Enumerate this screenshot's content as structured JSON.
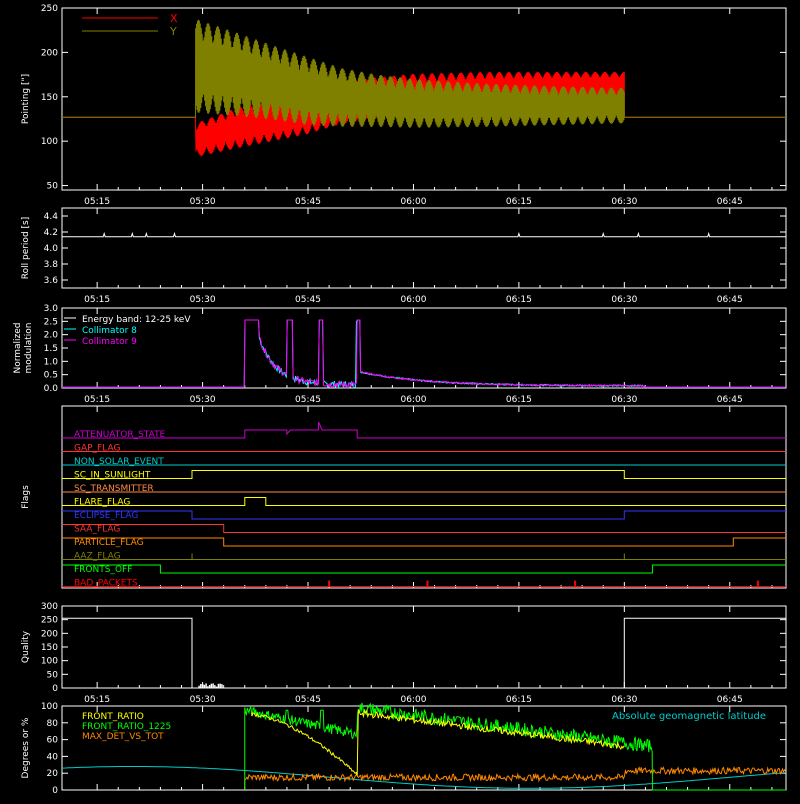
{
  "x_ticks": [
    "05:15",
    "05:30",
    "05:45",
    "06:00",
    "06:15",
    "06:30",
    "06:45"
  ],
  "chart_data": [
    {
      "type": "line",
      "ylabel": "Pointing [\"]",
      "ylim": [
        45,
        250
      ],
      "yticks": [
        "50",
        "100",
        "150",
        "200",
        "250"
      ],
      "x_axis": "time HH:MM",
      "x_range": [
        "05:10",
        "06:53"
      ],
      "legend": [
        "X",
        "Y"
      ],
      "series": [
        {
          "name": "X",
          "color": "#ff0000",
          "before": "127",
          "envelope": [
            {
              "t": "05:29",
              "lo": 82,
              "hi": 120
            },
            {
              "t": "05:35",
              "lo": 92,
              "hi": 138
            },
            {
              "t": "05:40",
              "lo": 100,
              "hi": 146
            },
            {
              "t": "05:45",
              "lo": 108,
              "hi": 155
            },
            {
              "t": "05:50",
              "lo": 120,
              "hi": 168
            },
            {
              "t": "05:55",
              "lo": 126,
              "hi": 172
            },
            {
              "t": "06:00",
              "lo": 130,
              "hi": 176
            },
            {
              "t": "06:10",
              "lo": 140,
              "hi": 178
            },
            {
              "t": "06:20",
              "lo": 146,
              "hi": 178
            },
            {
              "t": "06:30",
              "lo": 148,
              "hi": 178
            }
          ]
        },
        {
          "name": "Y",
          "color": "#808000",
          "before": "127",
          "envelope": [
            {
              "t": "05:29",
              "lo": 132,
              "hi": 238
            },
            {
              "t": "05:35",
              "lo": 128,
              "hi": 222
            },
            {
              "t": "05:40",
              "lo": 124,
              "hi": 208
            },
            {
              "t": "05:45",
              "lo": 118,
              "hi": 195
            },
            {
              "t": "05:50",
              "lo": 116,
              "hi": 182
            },
            {
              "t": "05:55",
              "lo": 116,
              "hi": 175
            },
            {
              "t": "06:00",
              "lo": 115,
              "hi": 170
            },
            {
              "t": "06:10",
              "lo": 116,
              "hi": 165
            },
            {
              "t": "06:20",
              "lo": 118,
              "hi": 162
            },
            {
              "t": "06:30",
              "lo": 120,
              "hi": 160
            }
          ]
        }
      ]
    },
    {
      "type": "line",
      "ylabel": "Roll period [s]",
      "ylim": [
        3.5,
        4.5
      ],
      "yticks": [
        "3.6",
        "3.8",
        "4.0",
        "4.2",
        "4.4"
      ],
      "series": [
        {
          "name": "",
          "color": "#ffffff",
          "value": 4.14,
          "blips": [
            "05:16",
            "05:20",
            "05:22",
            "05:26",
            "06:15",
            "06:27",
            "06:32",
            "06:42"
          ]
        }
      ]
    },
    {
      "type": "line",
      "ylabel": "Normalized modulation",
      "ylim": [
        0,
        3.0
      ],
      "yticks": [
        "0.0",
        "0.5",
        "1.0",
        "1.5",
        "2.0",
        "2.5",
        "3.0"
      ],
      "legend": [
        "Energy band: 12-25 keV",
        "Collimator 8",
        "Collimator 9"
      ],
      "series": [
        {
          "name": "Collimator 8",
          "color": "#00ffff"
        },
        {
          "name": "Collimator 9",
          "color": "#ff00ff"
        }
      ]
    },
    {
      "type": "line",
      "ylabel": "Flags",
      "flags": [
        {
          "label": "ATTENUATOR_STATE",
          "color": "#cc00cc",
          "transitions": [
            {
              "t": "05:36",
              "state": 1
            },
            {
              "t": "05:42",
              "state": 0.5
            },
            {
              "t": "05:42.5",
              "state": 1
            },
            {
              "t": "05:46.5",
              "state": 2
            },
            {
              "t": "05:47",
              "state": 1
            },
            {
              "t": "05:52",
              "state": 0
            }
          ]
        },
        {
          "label": "GAP_FLAG",
          "color": "#ff3333",
          "transitions": []
        },
        {
          "label": "NON_SOLAR_EVENT",
          "color": "#00cccc",
          "transitions": []
        },
        {
          "label": "SC_IN_SUNLIGHT",
          "color": "#ffff00",
          "transitions": [
            {
              "t": "05:28.5",
              "state": 1
            },
            {
              "t": "06:30",
              "state": 0
            }
          ]
        },
        {
          "label": "SC_TRANSMITTER",
          "color": "#ff8844",
          "transitions": []
        },
        {
          "label": "FLARE_FLAG",
          "color": "#ffff00",
          "transitions": [
            {
              "t": "05:36",
              "state": 1
            },
            {
              "t": "05:39",
              "state": 0
            }
          ]
        },
        {
          "label": "ECLIPSE_FLAG",
          "color": "#3333ff",
          "transitions": [
            {
              "t": "05:28.5",
              "state": 0
            },
            {
              "t": "06:30",
              "state": 1
            }
          ],
          "initial": 1
        },
        {
          "label": "SAA_FLAG",
          "color": "#ff3333",
          "transitions": [
            {
              "t": "05:33",
              "state": 0
            }
          ],
          "initial": 1
        },
        {
          "label": "PARTICLE_FLAG",
          "color": "#ff8800",
          "transitions": [
            {
              "t": "05:33",
              "state": 0
            },
            {
              "t": "06:45.5",
              "state": 1
            }
          ],
          "initial": 1
        },
        {
          "label": "AAZ_FLAG",
          "color": "#808000",
          "transitions": []
        },
        {
          "label": "FRONTS_OFF",
          "color": "#00ff00",
          "transitions": [
            {
              "t": "05:24",
              "state": 0
            },
            {
              "t": "06:34",
              "state": 1
            }
          ],
          "initial": 1
        },
        {
          "label": "BAD_PACKETS",
          "color": "#ff0000",
          "transitions": []
        }
      ]
    },
    {
      "type": "line",
      "ylabel": "Quality",
      "ylim": [
        0,
        300
      ],
      "yticks": [
        "0",
        "50",
        "100",
        "150",
        "200",
        "250",
        "300"
      ],
      "series": [
        {
          "name": "",
          "color": "#ffffff",
          "segments": [
            {
              "from": "05:10",
              "to": "05:28.5",
              "value": 255
            },
            {
              "from": "05:28.5",
              "to": "06:30",
              "value": 0
            },
            {
              "from": "06:30",
              "to": "06:53",
              "value": 255
            }
          ]
        }
      ]
    },
    {
      "type": "line",
      "ylabel": "Degrees or %",
      "ylim": [
        0,
        100
      ],
      "yticks": [
        "0",
        "20",
        "40",
        "60",
        "80",
        "100"
      ],
      "legend": [
        "FRONT_RATIO",
        "FRONT_RATIO_1225",
        "MAX_DET_VS_TOT"
      ],
      "annotation": "Absolute geomagnetic latitude",
      "series": [
        {
          "name": "FRONT_RATIO",
          "color": "#ffff00"
        },
        {
          "name": "FRONT_RATIO_1225",
          "color": "#00ff00"
        },
        {
          "name": "MAX_DET_VS_TOT",
          "color": "#ff8800"
        },
        {
          "name": "Absolute geomagnetic latitude",
          "color": "#00cccc"
        }
      ]
    }
  ]
}
